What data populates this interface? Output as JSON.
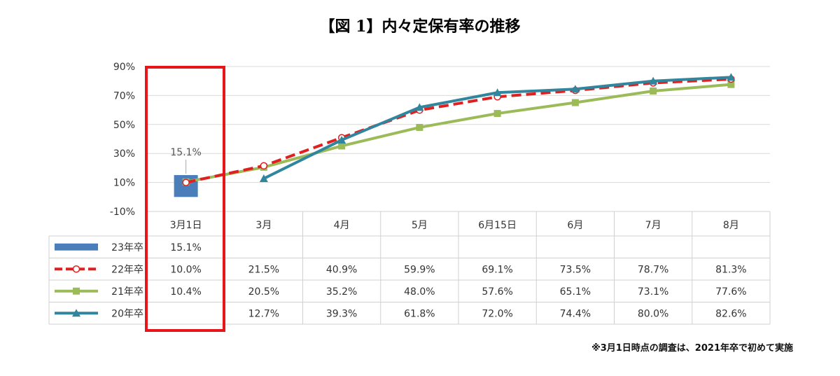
{
  "chart_data": {
    "type": "line",
    "title": "【図 1】内々定保有率の推移",
    "categories": [
      "3月1日",
      "3月",
      "4月",
      "5月",
      "6月15日",
      "6月",
      "7月",
      "8月"
    ],
    "y_ticks": [
      "90%",
      "70%",
      "50%",
      "30%",
      "10%",
      "-10%"
    ],
    "ylim": [
      -10,
      90
    ],
    "grid": true,
    "legend_placement": "data-table-left",
    "series": [
      {
        "name": "23年卒",
        "kind": "bar",
        "color": "#4a7ebb",
        "values": [
          15.1,
          null,
          null,
          null,
          null,
          null,
          null,
          null
        ],
        "labels": [
          "15.1%",
          "",
          "",
          "",
          "",
          "",
          "",
          ""
        ]
      },
      {
        "name": "22年卒",
        "kind": "dashed-line",
        "marker": "circle",
        "color": "#e02020",
        "values": [
          10.0,
          21.5,
          40.9,
          59.9,
          69.1,
          73.5,
          78.7,
          81.3
        ],
        "labels": [
          "10.0%",
          "21.5%",
          "40.9%",
          "59.9%",
          "69.1%",
          "73.5%",
          "78.7%",
          "81.3%"
        ]
      },
      {
        "name": "21年卒",
        "kind": "line",
        "marker": "square",
        "color": "#9bbb59",
        "values": [
          10.4,
          20.5,
          35.2,
          48.0,
          57.6,
          65.1,
          73.1,
          77.6
        ],
        "labels": [
          "10.4%",
          "20.5%",
          "35.2%",
          "48.0%",
          "57.6%",
          "65.1%",
          "73.1%",
          "77.6%"
        ]
      },
      {
        "name": "20年卒",
        "kind": "line",
        "marker": "triangle",
        "color": "#31859c",
        "values": [
          null,
          12.7,
          39.3,
          61.8,
          72.0,
          74.4,
          80.0,
          82.6
        ],
        "labels": [
          "",
          "12.7%",
          "39.3%",
          "61.8%",
          "72.0%",
          "74.4%",
          "80.0%",
          "82.6%"
        ]
      }
    ],
    "annotations": [
      {
        "text": "15.1%"
      }
    ],
    "highlight_color": "#e8161b",
    "footnote": "※3月1日時点の調査は、2021年卒で初めて実施"
  }
}
